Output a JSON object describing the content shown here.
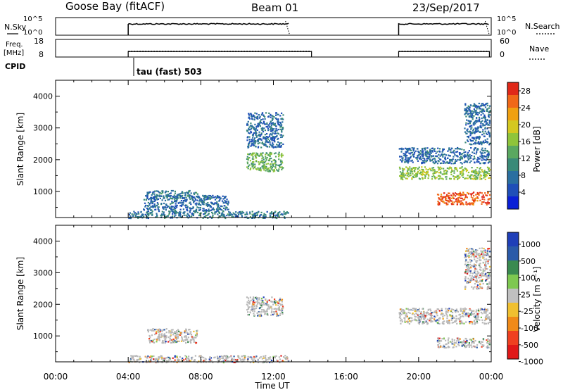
{
  "header": {
    "station": "Goose Bay (fitACF)",
    "beam": "Beam 01",
    "date": "23/Sep/2017"
  },
  "labels": {
    "nsky": "N.Sky",
    "nsearch": "N.Search",
    "freq": "Freq.",
    "freq_unit": "[MHz]",
    "nave": "Nave",
    "cpid": "CPID",
    "cpid_value": "tau (fast) 503",
    "slant_range": "Slant Range [km]",
    "time_ut": "Time UT",
    "power": "Power [dB]",
    "velocity": "Velocity [m s⁻¹]"
  },
  "noise_axis_ticks": [
    "10^5",
    "10^0"
  ],
  "freq_axis_ticks": [
    "18",
    "8"
  ],
  "nave_axis_ticks": [
    "60",
    "0"
  ],
  "chart_data": [
    {
      "type": "line",
      "title": "N.Sky / N.Search",
      "x_unit": "hours UT",
      "segments": [
        [
          4.0,
          12.9
        ],
        [
          18.9,
          23.9
        ]
      ],
      "nsky_level_log10": 3.2,
      "nsearch_level_log10": 4.0
    },
    {
      "type": "line",
      "title": "Freq. / Nave",
      "x_unit": "hours UT",
      "segments": [
        [
          4.0,
          14.1
        ],
        [
          18.9,
          23.9
        ]
      ],
      "freq_mhz": 10.3,
      "nave": 20
    },
    {
      "type": "heatmap",
      "title": "Power",
      "xlabel": "Time UT",
      "ylabel": "Slant Range [km]",
      "xlim": [
        0,
        24
      ],
      "ylim": [
        180,
        4500
      ],
      "x_ticks": [
        "00:00",
        "04:00",
        "08:00",
        "12:00",
        "16:00",
        "20:00",
        "00:00"
      ],
      "y_ticks": [
        1000,
        2000,
        3000,
        4000
      ],
      "colorbar": {
        "label": "Power [dB]",
        "range": [
          0,
          30
        ],
        "ticks": [
          4,
          8,
          12,
          16,
          20,
          24,
          28
        ]
      },
      "regions": [
        {
          "t": [
            4.0,
            12.8
          ],
          "r": [
            180,
            400
          ],
          "value": 8
        },
        {
          "t": [
            5.0,
            7.8
          ],
          "r": [
            800,
            1050
          ],
          "value": 8
        },
        {
          "t": [
            4.8,
            9.5
          ],
          "r": [
            400,
            900
          ],
          "value": 6
        },
        {
          "t": [
            10.5,
            12.5
          ],
          "r": [
            1650,
            2250
          ],
          "value": 14
        },
        {
          "t": [
            10.5,
            12.5
          ],
          "r": [
            2400,
            3500
          ],
          "value": 6
        },
        {
          "t": [
            18.9,
            23.9
          ],
          "r": [
            1400,
            1800
          ],
          "value": 16
        },
        {
          "t": [
            18.9,
            23.9
          ],
          "r": [
            1900,
            2400
          ],
          "value": 6
        },
        {
          "t": [
            21.0,
            23.9
          ],
          "r": [
            600,
            1000
          ],
          "value": 28
        },
        {
          "t": [
            22.5,
            23.9
          ],
          "r": [
            2500,
            3800
          ],
          "value": 6
        }
      ]
    },
    {
      "type": "heatmap",
      "title": "Velocity",
      "xlabel": "Time UT",
      "ylabel": "Slant Range [km]",
      "xlim": [
        0,
        24
      ],
      "ylim": [
        180,
        4500
      ],
      "x_ticks": [
        "00:00",
        "04:00",
        "08:00",
        "12:00",
        "16:00",
        "20:00",
        "00:00"
      ],
      "y_ticks": [
        1000,
        2000,
        3000,
        4000
      ],
      "colorbar": {
        "label": "Velocity [m s⁻¹]",
        "range": [
          -1000,
          1000
        ],
        "ticks": [
          1000,
          500,
          100,
          25,
          -25,
          -100,
          -500,
          -1000
        ]
      },
      "regions": [
        {
          "t": [
            4.0,
            12.8
          ],
          "r": [
            180,
            400
          ],
          "value": 0
        },
        {
          "t": [
            5.0,
            7.8
          ],
          "r": [
            800,
            1250
          ],
          "value": 0
        },
        {
          "t": [
            10.5,
            12.5
          ],
          "r": [
            1650,
            2250
          ],
          "value": 0
        },
        {
          "t": [
            18.9,
            23.9
          ],
          "r": [
            1400,
            1900
          ],
          "value": 0
        },
        {
          "t": [
            21.0,
            23.9
          ],
          "r": [
            650,
            950
          ],
          "value": 0
        },
        {
          "t": [
            22.5,
            23.9
          ],
          "r": [
            2500,
            3800
          ],
          "value": 0
        }
      ]
    }
  ],
  "colors": {
    "power_scale": [
      "#0a1fd6",
      "#1f4fb8",
      "#2a6fa0",
      "#3a8a78",
      "#5aa860",
      "#8fc43a",
      "#d4c820",
      "#f0a010",
      "#f06818",
      "#e02818"
    ],
    "velocity_scale": [
      "#1f3fb8",
      "#2a5aa8",
      "#3a8a50",
      "#7ec850",
      "#c0c0c0",
      "#f0c030",
      "#f08a18",
      "#ef4020",
      "#e01818"
    ],
    "ground_scatter": "#b8b8b8"
  }
}
